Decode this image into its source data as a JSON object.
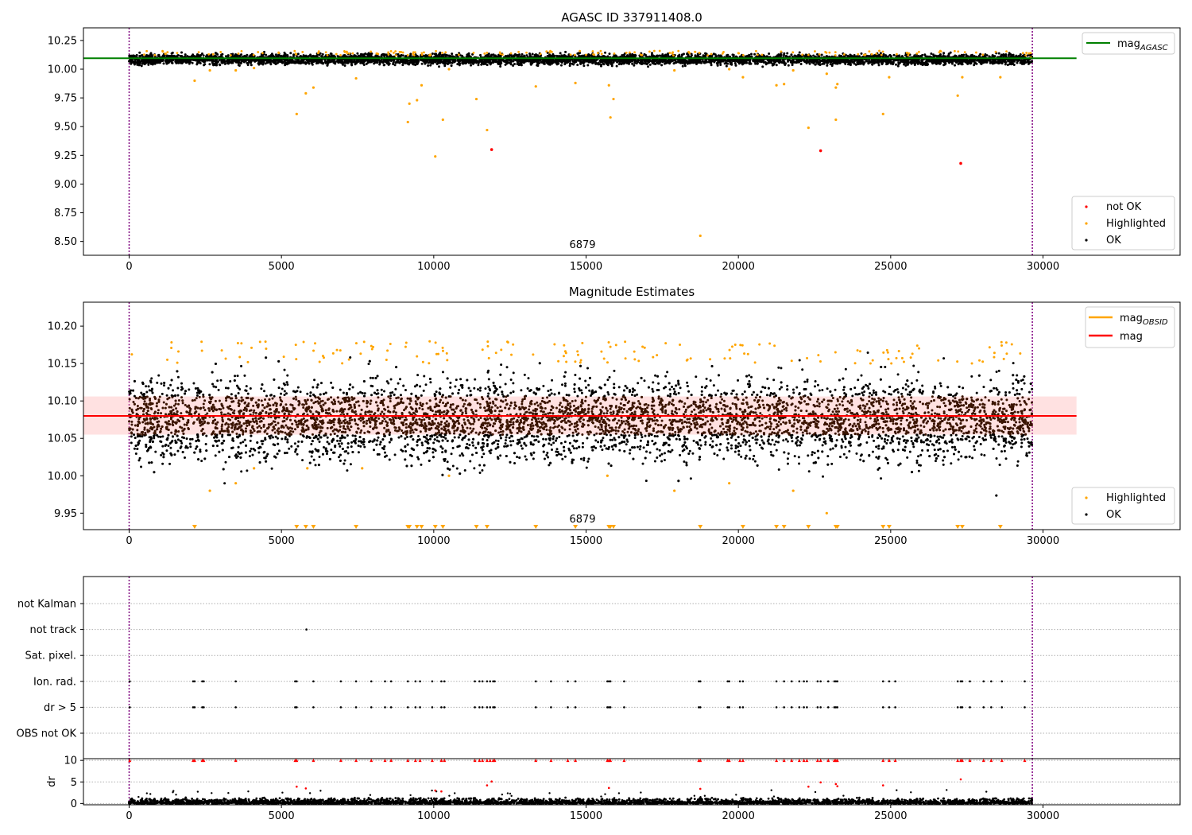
{
  "chart_data": [
    {
      "type": "scatter",
      "title": "AGASC ID 337911408.0",
      "xlabel": "",
      "ylabel": "",
      "xlim": [
        -1500,
        34500
      ],
      "ylim": [
        8.38,
        10.36
      ],
      "x_ticks": [
        "0",
        "5000",
        "10000",
        "15000",
        "20000",
        "25000",
        "30000"
      ],
      "y_ticks": [
        "8.50",
        "8.75",
        "9.00",
        "9.25",
        "9.50",
        "9.75",
        "10.00",
        "10.25"
      ],
      "vlines": [
        0,
        29650
      ],
      "hline": {
        "name": "mag_AGASC",
        "y": 10.095,
        "color": "#008000",
        "xrange": [
          -1500,
          31100
        ]
      },
      "annotation": {
        "text": "6879",
        "x": 14800,
        "y": 8.5
      },
      "legend_position": "lower right",
      "ok_band": {
        "x_range": [
          0,
          29650
        ],
        "y_range": [
          10.02,
          10.15
        ],
        "color": "#000000"
      },
      "series": [
        {
          "name": "not OK",
          "color": "#ff0000",
          "points": [
            [
              11900,
              9.3
            ],
            [
              22700,
              9.29
            ],
            [
              27300,
              9.18
            ]
          ]
        },
        {
          "name": "Highlighted",
          "color": "#ffa500",
          "points": [
            [
              2150,
              9.9
            ],
            [
              2650,
              9.99
            ],
            [
              3500,
              9.99
            ],
            [
              4100,
              10.01
            ],
            [
              5500,
              9.61
            ],
            [
              5800,
              9.79
            ],
            [
              6050,
              9.84
            ],
            [
              7450,
              9.92
            ],
            [
              9150,
              9.54
            ],
            [
              9200,
              9.7
            ],
            [
              9450,
              9.73
            ],
            [
              9600,
              9.86
            ],
            [
              10050,
              9.24
            ],
            [
              10300,
              9.56
            ],
            [
              10500,
              10.0
            ],
            [
              11400,
              9.74
            ],
            [
              11750,
              9.47
            ],
            [
              13350,
              9.85
            ],
            [
              14650,
              9.88
            ],
            [
              15750,
              9.86
            ],
            [
              15800,
              9.58
            ],
            [
              15900,
              9.74
            ],
            [
              17900,
              9.99
            ],
            [
              18750,
              8.55
            ],
            [
              19700,
              10.0
            ],
            [
              20150,
              9.93
            ],
            [
              21250,
              9.86
            ],
            [
              21500,
              9.87
            ],
            [
              21800,
              9.99
            ],
            [
              22300,
              9.49
            ],
            [
              22900,
              9.96
            ],
            [
              23200,
              9.84
            ],
            [
              23250,
              9.87
            ],
            [
              23200,
              9.56
            ],
            [
              24950,
              9.93
            ],
            [
              24750,
              9.61
            ],
            [
              27200,
              9.77
            ],
            [
              27350,
              9.93
            ],
            [
              28600,
              9.93
            ],
            [
              29600,
              10.1
            ]
          ]
        },
        {
          "name": "OK",
          "color": "#000000",
          "points": []
        }
      ]
    },
    {
      "type": "scatter",
      "title": "Magnitude Estimates",
      "xlabel": "",
      "ylabel": "",
      "xlim": [
        -1500,
        34500
      ],
      "ylim": [
        9.928,
        10.232
      ],
      "x_ticks": [
        "0",
        "5000",
        "10000",
        "15000",
        "20000",
        "25000",
        "30000"
      ],
      "y_ticks": [
        "9.95",
        "10.00",
        "10.05",
        "10.10",
        "10.15",
        "10.20"
      ],
      "vlines": [
        0,
        29650
      ],
      "hlines": [
        {
          "name": "mag_OBSID",
          "color": "#ffa500"
        },
        {
          "name": "mag",
          "y": 10.08,
          "color": "#ff0000",
          "xrange": [
            -1500,
            31100
          ]
        }
      ],
      "band": {
        "y_range": [
          10.055,
          10.106
        ],
        "x_range": [
          -1500,
          31100
        ],
        "color": "#ffaaaa"
      },
      "annotation": {
        "text": "6879",
        "x": 14800,
        "y": 9.94
      },
      "legend_position": "lower right",
      "series": [
        {
          "name": "Highlighted",
          "color": "#ffa500",
          "points": [
            [
              2650,
              9.98
            ],
            [
              3500,
              9.99
            ],
            [
              4100,
              10.01
            ],
            [
              5850,
              10.01
            ],
            [
              7650,
              10.01
            ],
            [
              10500,
              10.0
            ],
            [
              15700,
              10.0
            ],
            [
              17900,
              9.98
            ],
            [
              19700,
              9.99
            ],
            [
              21800,
              9.98
            ],
            [
              22900,
              9.95
            ]
          ]
        },
        {
          "name": "OK",
          "color": "#000000",
          "points": []
        }
      ],
      "lower_limit_markers": [
        2150,
        5500,
        5800,
        6050,
        7450,
        9150,
        9200,
        9450,
        9600,
        10050,
        10300,
        11400,
        11750,
        13350,
        14650,
        15750,
        15800,
        15900,
        18750,
        20150,
        21250,
        21500,
        22300,
        23200,
        23250,
        24750,
        24950,
        27200,
        27350,
        28600
      ]
    },
    {
      "type": "scatter",
      "title": "",
      "xlabel": "",
      "ylabel": "",
      "xlim": [
        -1500,
        34500
      ],
      "x_ticks": [
        "0",
        "5000",
        "10000",
        "15000",
        "20000",
        "25000",
        "30000"
      ],
      "vlines": [
        0,
        29650
      ],
      "categories": [
        "not Kalman",
        "not track",
        "Sat. pixel.",
        "Ion. rad.",
        "dr > 5",
        "OBS not OK"
      ],
      "flags": {
        "not track": [
          5820
        ],
        "Ion. rad.": [
          20,
          2100,
          2150,
          2400,
          2450,
          3500,
          5450,
          5500,
          6050,
          6950,
          7450,
          7950,
          8400,
          8600,
          9150,
          9400,
          9550,
          9950,
          10250,
          10350,
          11350,
          11500,
          11600,
          11750,
          11850,
          11950,
          12000,
          13350,
          13850,
          14400,
          14650,
          15700,
          15750,
          15800,
          16250,
          18700,
          18750,
          19650,
          19700,
          20050,
          20150,
          21250,
          21500,
          21750,
          22000,
          22150,
          22250,
          22600,
          22700,
          22950,
          23150,
          23200,
          23250,
          24750,
          24950,
          25150,
          27200,
          27300,
          27350,
          27600,
          28050,
          28300,
          28650,
          29400
        ],
        "dr > 5": [
          20,
          2100,
          2150,
          2400,
          2450,
          3500,
          5450,
          5500,
          6050,
          6950,
          7450,
          7950,
          8400,
          8600,
          9150,
          9400,
          9550,
          9950,
          10250,
          10350,
          11350,
          11500,
          11600,
          11750,
          11850,
          11950,
          12000,
          13350,
          13850,
          14400,
          14650,
          15700,
          15750,
          15800,
          16250,
          18700,
          18750,
          19650,
          19700,
          20050,
          20150,
          21250,
          21500,
          21750,
          22000,
          22150,
          22250,
          22600,
          22700,
          22950,
          23150,
          23200,
          23250,
          24750,
          24950,
          25150,
          27200,
          27300,
          27350,
          27600,
          28050,
          28300,
          28650,
          29400
        ]
      }
    },
    {
      "type": "scatter",
      "title": "",
      "xlabel": "",
      "ylabel": "dr",
      "xlim": [
        -1500,
        34500
      ],
      "ylim": [
        -0.3,
        10.4
      ],
      "x_ticks": [
        "0",
        "5000",
        "10000",
        "15000",
        "20000",
        "25000",
        "30000"
      ],
      "y_ticks": [
        "0",
        "5",
        "10"
      ],
      "vlines": [
        0,
        29650
      ],
      "series": [
        {
          "name": "dr > 5",
          "color": "#ff0000",
          "points": [
            [
              5500,
              3.9
            ],
            [
              5800,
              3.5
            ],
            [
              10050,
              3.0
            ],
            [
              10250,
              2.8
            ],
            [
              11750,
              4.2
            ],
            [
              11900,
              5.1
            ],
            [
              15750,
              3.6
            ],
            [
              18750,
              3.4
            ],
            [
              22300,
              3.9
            ],
            [
              22700,
              4.9
            ],
            [
              23200,
              4.5
            ],
            [
              23250,
              4.0
            ],
            [
              24750,
              4.2
            ],
            [
              27300,
              5.6
            ]
          ],
          "capped_at_10": [
            20,
            2100,
            2150,
            2400,
            2450,
            3500,
            5450,
            5500,
            6050,
            6950,
            7450,
            7950,
            8400,
            8600,
            9150,
            9400,
            9550,
            9950,
            10250,
            10350,
            11350,
            11500,
            11600,
            11750,
            11850,
            11950,
            12000,
            13350,
            13850,
            14400,
            14650,
            15700,
            15750,
            15800,
            16250,
            18700,
            18750,
            19650,
            19700,
            20050,
            20150,
            21250,
            21500,
            21750,
            22000,
            22150,
            22250,
            22600,
            22700,
            22950,
            23150,
            23200,
            23250,
            24750,
            24950,
            25150,
            27200,
            27300,
            27350,
            27600,
            28050,
            28300,
            28650,
            29400
          ]
        },
        {
          "name": "dr",
          "color": "#000000",
          "points": []
        }
      ],
      "dr_band": {
        "y_range": [
          0,
          1.3
        ]
      }
    }
  ]
}
